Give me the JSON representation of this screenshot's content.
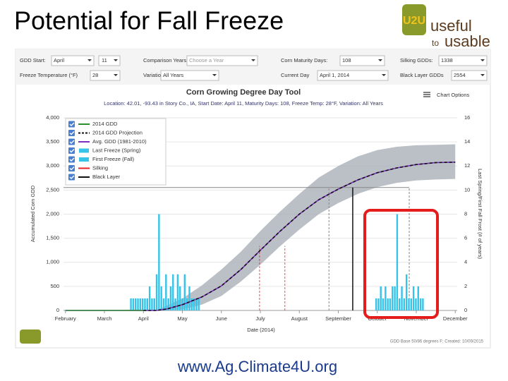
{
  "slide_title": "Potential for Fall Freeze",
  "logo": {
    "mark": "U2U",
    "line1": "useful",
    "line2a": "to",
    "line2b": "usable"
  },
  "footer": "www.Ag.Climate4U.org",
  "controls": [
    {
      "label": "GDD Start:",
      "value": "April",
      "value2": "11"
    },
    {
      "label": "Comparison Years:",
      "value": "Choose a Year"
    },
    {
      "label": "Corn Maturity Days:",
      "value": "108"
    },
    {
      "label": "Silking GDDs:",
      "value": 1338
    },
    {
      "label": "Freeze Temperature (°F)",
      "value": "28"
    },
    {
      "label": "Variation",
      "value": "All Years"
    },
    {
      "label": "Current Day",
      "value": "April 1, 2014"
    },
    {
      "label": "Black Layer GDDs",
      "value": 2554
    }
  ],
  "chart_options": "Chart Options",
  "chart_data": {
    "type": "line",
    "title": "Corn Growing Degree Day Tool",
    "subtitle": "Location: 42.01, -93.43 in Story Co., IA, Start Date: April 11, Maturity Days: 108, Freeze Temp: 28°F, Variation: All Years",
    "xlabel": "Date (2014)",
    "ylabel": "Accumulated Corn GDD",
    "y2label": "Last Spring/First Fall Frost (# of years)",
    "credit": "GDD Base 50/86 degrees F; Created: 10/09/2015",
    "xlim": [
      -0.05,
      10.05
    ],
    "xticks": [
      {
        "value": 0,
        "label": "February"
      },
      {
        "value": 1,
        "label": "March"
      },
      {
        "value": 2,
        "label": "April"
      },
      {
        "value": 3,
        "label": "May"
      },
      {
        "value": 4,
        "label": "June"
      },
      {
        "value": 5,
        "label": "July"
      },
      {
        "value": 6,
        "label": "August"
      },
      {
        "value": 7,
        "label": "September"
      },
      {
        "value": 8,
        "label": "October"
      },
      {
        "value": 9,
        "label": "November"
      },
      {
        "value": 10,
        "label": "December"
      }
    ],
    "ylim": [
      0,
      4000
    ],
    "yticks": [
      0,
      500,
      {
        "value": 1000,
        "label": "1,000"
      },
      {
        "value": 1500,
        "label": "1,500"
      },
      {
        "value": 2000,
        "label": "2,000"
      },
      {
        "value": 2500,
        "label": "2,500"
      },
      {
        "value": 3000,
        "label": "3,000"
      },
      {
        "value": 3500,
        "label": "3,500"
      },
      {
        "value": 4000,
        "label": "4,000"
      }
    ],
    "y2lim": [
      0,
      16
    ],
    "y2ticks": [
      0,
      2,
      4,
      6,
      8,
      10,
      12,
      14,
      16
    ],
    "band": {
      "color": "#a9b0b8",
      "x": [
        2.33,
        3,
        3.5,
        4,
        4.5,
        5,
        5.5,
        6,
        6.5,
        7,
        7.5,
        8,
        8.5,
        9,
        9.5,
        10
      ],
      "lower": [
        0,
        20,
        120,
        300,
        600,
        950,
        1330,
        1680,
        2000,
        2230,
        2420,
        2560,
        2650,
        2700,
        2720,
        2730
      ],
      "upper": [
        0,
        250,
        520,
        850,
        1220,
        1650,
        2050,
        2420,
        2760,
        3000,
        3200,
        3330,
        3400,
        3430,
        3440,
        3450
      ]
    },
    "range_lines": {
      "color": "#888888",
      "x": [
        6.76,
        8.82
      ],
      "values": [
        2554,
        2554
      ]
    },
    "series": [
      {
        "name": "2014 GDD",
        "kind": "line",
        "color": "#2e8b2e",
        "x": [
          0,
          2
        ],
        "values": [
          0,
          0
        ]
      },
      {
        "name": "2014 GDD Projection",
        "kind": "dashed",
        "color": "#111111",
        "x": [
          2,
          2.33,
          2.6,
          3,
          3.5,
          4,
          4.5,
          5,
          5.5,
          6,
          6.5,
          7,
          7.5,
          8,
          8.5,
          9,
          9.5,
          10
        ],
        "values": [
          0,
          0,
          30,
          120,
          280,
          510,
          850,
          1250,
          1640,
          2000,
          2300,
          2520,
          2710,
          2860,
          2960,
          3030,
          3070,
          3080
        ]
      },
      {
        "name": "Avg. GDD (1981-2010)",
        "kind": "line",
        "color": "#7b2fbf",
        "x": [
          0,
          2.33,
          2.6,
          3,
          3.5,
          4,
          4.5,
          5,
          5.5,
          6,
          6.5,
          7,
          7.5,
          8,
          8.5,
          9,
          9.5,
          10
        ],
        "values": [
          0,
          0,
          30,
          120,
          280,
          510,
          850,
          1250,
          1640,
          2000,
          2300,
          2520,
          2710,
          2860,
          2960,
          3030,
          3070,
          3080
        ]
      },
      {
        "name": "Last Freeze (Spring)",
        "kind": "bars",
        "axis": "y2",
        "color": "#35c3ea",
        "x": [
          1.68,
          1.74,
          1.8,
          1.86,
          1.92,
          1.98,
          2.04,
          2.1,
          2.16,
          2.22,
          2.28,
          2.34,
          2.4,
          2.46,
          2.52,
          2.58,
          2.64,
          2.7,
          2.76,
          2.82,
          2.88,
          2.94,
          3.0,
          3.06,
          3.12,
          3.18,
          3.24,
          3.3,
          3.36,
          3.42
        ],
        "values": [
          1,
          1,
          1,
          1,
          1,
          1,
          1,
          1,
          2,
          1,
          1,
          3,
          8,
          2,
          1,
          3,
          1,
          2,
          3,
          1,
          3,
          2,
          1,
          3,
          1,
          2,
          1,
          1,
          1,
          1
        ]
      },
      {
        "name": "First Freeze (Fall)",
        "kind": "bars",
        "axis": "y2",
        "color": "#35c3ea",
        "x": [
          7.97,
          8.03,
          8.09,
          8.15,
          8.21,
          8.27,
          8.33,
          8.39,
          8.45,
          8.51,
          8.57,
          8.63,
          8.69,
          8.75,
          8.81,
          8.87,
          8.93,
          8.99,
          9.05,
          9.11,
          9.17
        ],
        "values": [
          1,
          1,
          2,
          1,
          2,
          1,
          1,
          2,
          2,
          8,
          1,
          2,
          1,
          3,
          1,
          1,
          2,
          1,
          2,
          1,
          1
        ]
      },
      {
        "name": "Silking",
        "kind": "vlines",
        "color": "#e8202a",
        "x": [
          4.98,
          5.63
        ],
        "values": [
          1338,
          1338
        ]
      },
      {
        "name": "Black Layer",
        "kind": "vlines",
        "color": "#111111",
        "x": [
          7.37
        ],
        "values": [
          2554
        ]
      }
    ]
  }
}
